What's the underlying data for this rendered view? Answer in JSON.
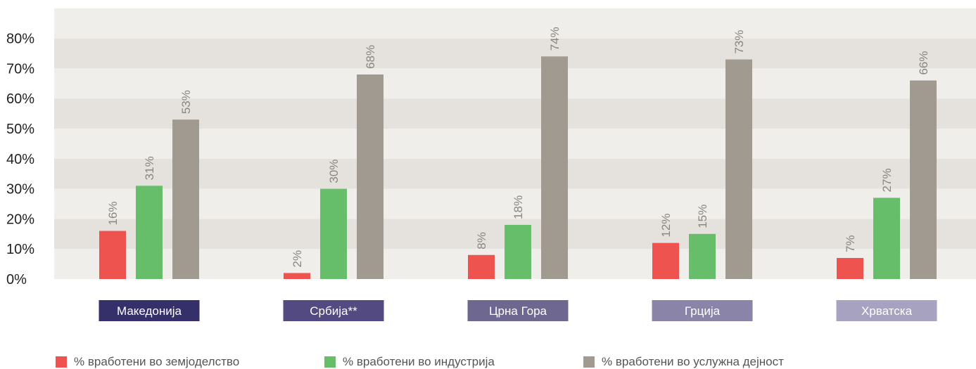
{
  "chart_data": {
    "type": "bar",
    "categories": [
      "Македонија",
      "Србија**",
      "Црна Гора",
      "Грција",
      "Хрватска"
    ],
    "category_colors": [
      "#35306a",
      "#524a80",
      "#6e6890",
      "#8a84a8",
      "#a7a2c0"
    ],
    "series": [
      {
        "name": "% вработени во земјоделство",
        "color": "#ef5350",
        "values": [
          16,
          2,
          8,
          12,
          7
        ],
        "labels": [
          "16%",
          "2%",
          "8%",
          "12%",
          "7%"
        ]
      },
      {
        "name": "% вработени во индустрија",
        "color": "#66bd6a",
        "values": [
          31,
          30,
          18,
          15,
          27
        ],
        "labels": [
          "31%",
          "30%",
          "18%",
          "15%",
          "27%"
        ]
      },
      {
        "name": "% вработени во услужна дејност",
        "color": "#a19a90",
        "values": [
          53,
          68,
          74,
          73,
          66
        ],
        "labels": [
          "53%",
          "68%",
          "74%",
          "73%",
          "66%"
        ]
      }
    ],
    "y_ticks": [
      "0%",
      "10%",
      "20%",
      "30%",
      "40%",
      "50%",
      "60%",
      "70%",
      "80%"
    ],
    "ylim": [
      0,
      90
    ],
    "grid": "alternating horizontal bands",
    "band_colors": [
      "#f0eeeb",
      "#e5e2de"
    ],
    "legend_position": "bottom"
  }
}
